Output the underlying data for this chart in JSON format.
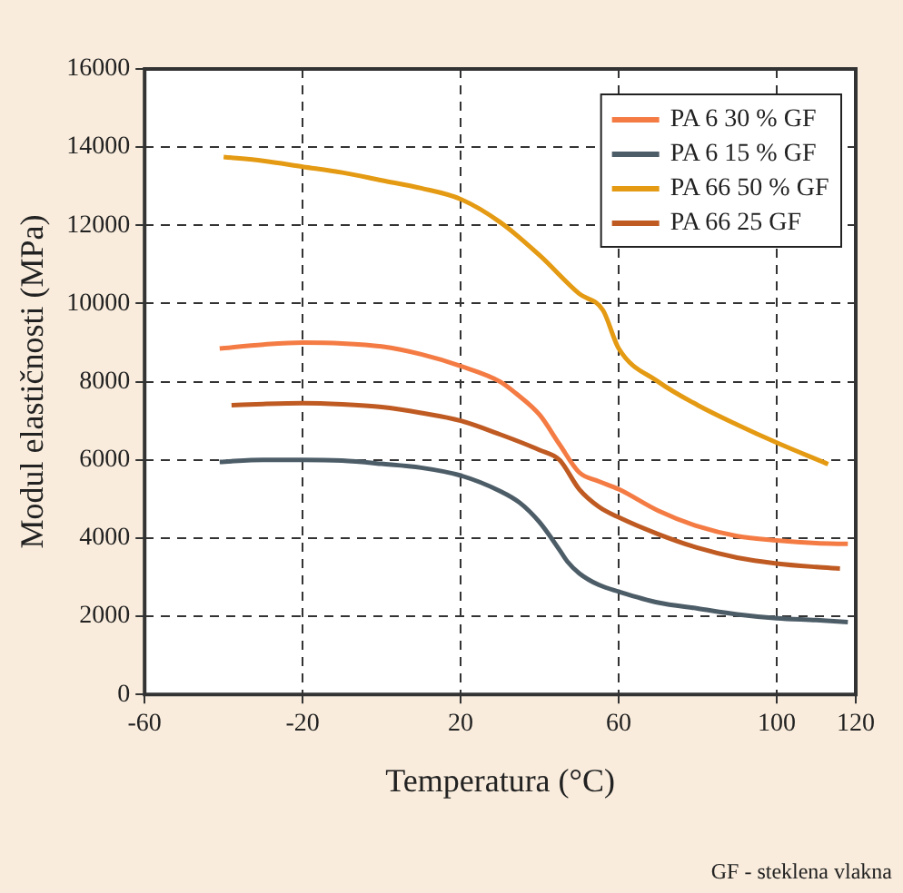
{
  "chart_data": {
    "type": "line",
    "xlabel": "Temperatura (°C)",
    "ylabel": "Modul elastičnosti (MPa)",
    "annotations": [
      "GF - steklena vlakna"
    ],
    "xlim": [
      -60,
      120
    ],
    "xticks": [
      -60,
      -20,
      20,
      60,
      100,
      120
    ],
    "ylim": [
      0,
      16000
    ],
    "yticks": [
      0,
      2000,
      4000,
      6000,
      8000,
      10000,
      12000,
      14000,
      16000
    ],
    "grid": true,
    "legend": "top right",
    "line_style": "solid",
    "marker": "none",
    "series": [
      {
        "name": "PA 6 30 % GF",
        "color": "#f47c44",
        "x": [
          -41,
          -30,
          -20,
          -10,
          0,
          10,
          20,
          30,
          34,
          40,
          45,
          50,
          55,
          60,
          70,
          80,
          90,
          100,
          110,
          118
        ],
        "values": [
          8850,
          8950,
          9000,
          8980,
          8900,
          8700,
          8400,
          8000,
          7700,
          7150,
          6400,
          5680,
          5450,
          5250,
          4700,
          4300,
          4050,
          3940,
          3870,
          3850
        ]
      },
      {
        "name": "PA 6 15 % GF",
        "color": "#4d5d68",
        "x": [
          -41,
          -30,
          -20,
          -10,
          0,
          10,
          20,
          30,
          35,
          40,
          45,
          47,
          50,
          55,
          60,
          70,
          80,
          90,
          100,
          110,
          118
        ],
        "values": [
          5950,
          6000,
          6000,
          5980,
          5900,
          5800,
          5600,
          5200,
          4900,
          4400,
          3700,
          3400,
          3100,
          2800,
          2630,
          2350,
          2200,
          2050,
          1950,
          1900,
          1850
        ]
      },
      {
        "name": "PA 66 50 % GF",
        "color": "#e49a12",
        "x": [
          -40,
          -30,
          -20,
          -10,
          0,
          10,
          20,
          30,
          40,
          50,
          56,
          60,
          70,
          80,
          90,
          100,
          113
        ],
        "values": [
          13750,
          13650,
          13500,
          13350,
          13150,
          12950,
          12670,
          12080,
          11230,
          10250,
          9830,
          8850,
          8000,
          7400,
          6900,
          6440,
          5890
        ]
      },
      {
        "name": "PA 66 25 GF",
        "color": "#bf5a22",
        "x": [
          -38,
          -30,
          -20,
          -10,
          0,
          10,
          20,
          30,
          40,
          45,
          50,
          55,
          60,
          70,
          80,
          90,
          100,
          110,
          116
        ],
        "values": [
          7400,
          7430,
          7450,
          7420,
          7350,
          7200,
          7000,
          6650,
          6250,
          6000,
          5250,
          4800,
          4530,
          4100,
          3750,
          3500,
          3350,
          3260,
          3220
        ]
      }
    ]
  }
}
